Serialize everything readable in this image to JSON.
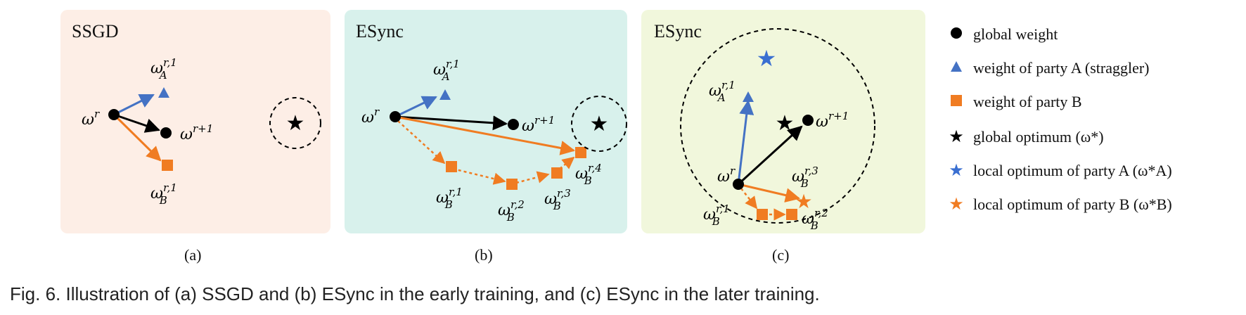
{
  "panels": {
    "a": {
      "title": "SSGD",
      "sublabel": "(a)"
    },
    "b": {
      "title": "ESync",
      "sublabel": "(b)"
    },
    "c": {
      "title": "ESync",
      "sublabel": "(c)"
    }
  },
  "math": {
    "w": "ω",
    "r": "r",
    "r_plus_1": "r+1",
    "sub_A": "A",
    "sub_B": "B",
    "sup_r1": "r,1",
    "sup_r2": "r,2",
    "sup_r3": "r,3",
    "sup_r4": "r,4"
  },
  "legend": [
    {
      "symbol": "circle",
      "color": "#000000",
      "text": "global weight"
    },
    {
      "symbol": "triangle",
      "color": "#4472c4",
      "text": "weight of party A (straggler)"
    },
    {
      "symbol": "square",
      "color": "#f07c22",
      "text": "weight of party B"
    },
    {
      "symbol": "star",
      "color": "#000000",
      "text": "global optimum (ω*)"
    },
    {
      "symbol": "star",
      "color": "#3a6fd1",
      "text": "local optimum of party A (ω*A)"
    },
    {
      "symbol": "star",
      "color": "#f07c22",
      "text": "local optimum of party B (ω*B)"
    }
  ],
  "colors": {
    "black": "#000000",
    "blue": "#4472c4",
    "orange": "#f07c22"
  },
  "caption": "Fig. 6. Illustration of (a) SSGD and (b) ESync in the early training, and (c) ESync in the later training."
}
